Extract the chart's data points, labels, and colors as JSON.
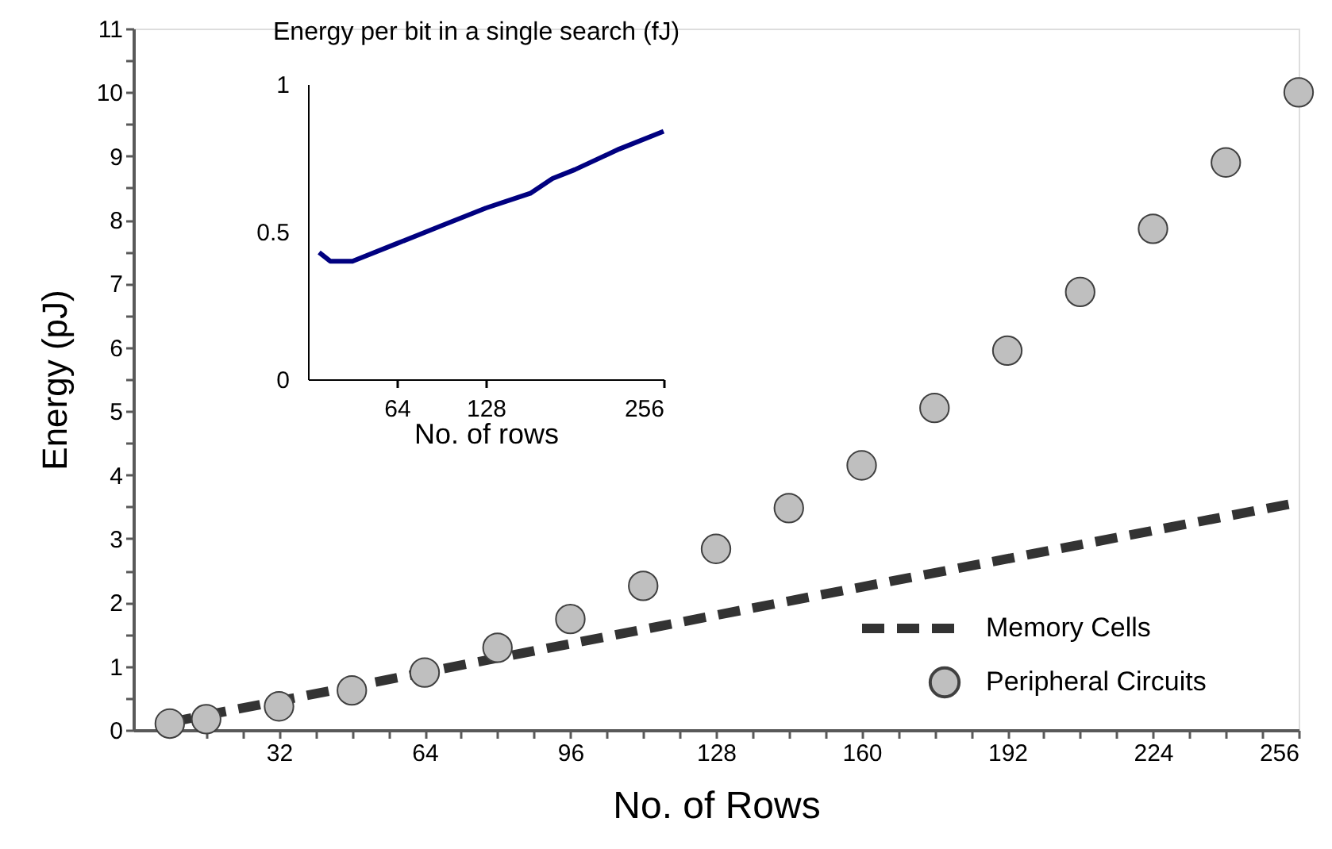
{
  "chart_data": [
    {
      "type": "line",
      "xlabel": "No. of Rows",
      "ylabel": "Energy (pJ)",
      "xlim": [
        0,
        256
      ],
      "ylim": [
        0,
        11
      ],
      "xticks": [
        {
          "value": 8,
          "label": null
        },
        {
          "value": 16,
          "label": null
        },
        {
          "value": 24,
          "label": null
        },
        32,
        {
          "value": 40,
          "label": null
        },
        {
          "value": 48,
          "label": null
        },
        {
          "value": 56,
          "label": null
        },
        64,
        {
          "value": 72,
          "label": null
        },
        {
          "value": 80,
          "label": null
        },
        {
          "value": 88,
          "label": null
        },
        96,
        {
          "value": 104,
          "label": null
        },
        {
          "value": 112,
          "label": null
        },
        {
          "value": 120,
          "label": null
        },
        128,
        {
          "value": 136,
          "label": null
        },
        {
          "value": 144,
          "label": null
        },
        {
          "value": 152,
          "label": null
        },
        160,
        {
          "value": 168,
          "label": null
        },
        {
          "value": 176,
          "label": null
        },
        {
          "value": 184,
          "label": null
        },
        192,
        {
          "value": 200,
          "label": null
        },
        {
          "value": 208,
          "label": null
        },
        {
          "value": 216,
          "label": null
        },
        224,
        {
          "value": 232,
          "label": null
        },
        {
          "value": 240,
          "label": null
        },
        {
          "value": 248,
          "label": null
        },
        256
      ],
      "yticks": [
        0,
        {
          "value": 0.5,
          "label": null
        },
        1,
        {
          "value": 1.5,
          "label": null
        },
        2,
        {
          "value": 2.5,
          "label": null
        },
        3,
        {
          "value": 3.5,
          "label": null
        },
        4,
        {
          "value": 4.5,
          "label": null
        },
        5,
        {
          "value": 5.5,
          "label": null
        },
        6,
        {
          "value": 6.5,
          "label": null
        },
        7,
        {
          "value": 7.5,
          "label": null
        },
        8,
        {
          "value": 8.5,
          "label": null
        },
        9,
        {
          "value": 9.5,
          "label": null
        },
        10,
        {
          "value": 10.5,
          "label": null
        },
        11
      ],
      "grid": false,
      "legend": "bottom right",
      "series": [
        {
          "name": "Memory Cells",
          "type": "line",
          "color": "#333333",
          "line_style": "dashed",
          "marker": "none",
          "x": [
            8,
            128,
            256
          ],
          "values": [
            0.12,
            1.8,
            3.57
          ]
        },
        {
          "name": "Peripheral Circuits",
          "type": "scatter",
          "color": "#bfbfbf",
          "marker": "circle",
          "x": [
            8,
            16,
            32,
            48,
            64,
            80,
            96,
            112,
            128,
            144,
            160,
            176,
            192,
            208,
            224,
            240,
            256
          ],
          "values": [
            0.1,
            0.17,
            0.37,
            0.62,
            0.9,
            1.29,
            1.74,
            2.26,
            2.84,
            3.48,
            4.15,
            5.05,
            5.95,
            6.87,
            7.86,
            8.9,
            10.0
          ]
        }
      ]
    },
    {
      "type": "line",
      "title": "Energy per bit in a single search (fJ)",
      "xlabel": "No. of rows",
      "xlim": [
        0,
        256
      ],
      "ylim": [
        0,
        1
      ],
      "xticks": [
        64,
        128,
        256
      ],
      "yticks": [
        0,
        0.5,
        1
      ],
      "grid": false,
      "legend": false,
      "series": [
        {
          "type": "line",
          "color": "#000080",
          "line_style": "solid",
          "marker": "none",
          "x": [
            8,
            16,
            32,
            64,
            96,
            128,
            160,
            176,
            192,
            224,
            256
          ],
          "values": [
            0.43,
            0.4,
            0.4,
            0.46,
            0.52,
            0.58,
            0.63,
            0.68,
            0.71,
            0.78,
            0.84
          ]
        }
      ]
    }
  ]
}
